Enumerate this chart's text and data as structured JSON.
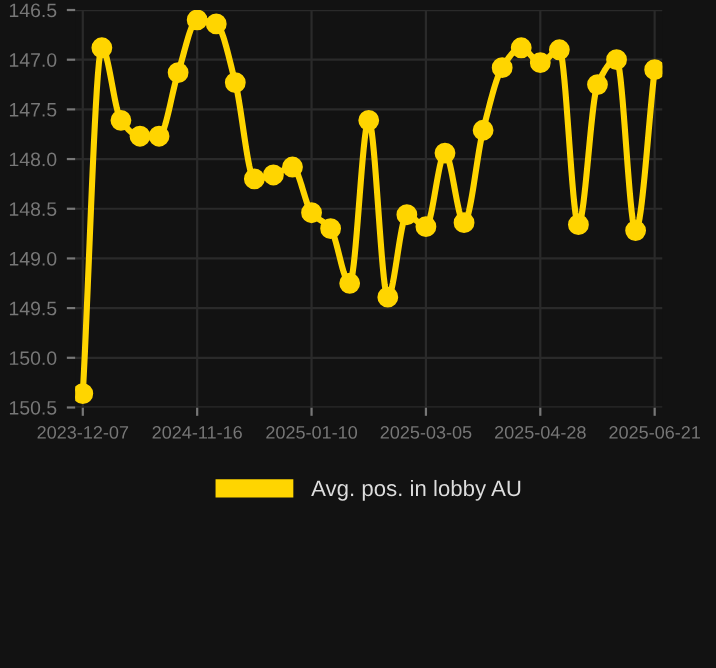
{
  "chart_data": {
    "type": "line",
    "categories": [
      "2023-12-07",
      null,
      null,
      null,
      null,
      null,
      "2024-11-16",
      null,
      null,
      null,
      null,
      null,
      "2025-01-10",
      null,
      null,
      null,
      null,
      null,
      "2025-03-05",
      null,
      null,
      null,
      null,
      null,
      "2025-04-28",
      null,
      null,
      null,
      null,
      null,
      "2025-06-21"
    ],
    "series": [
      {
        "name": "Avg. pos. in lobby AU",
        "color": "#ffd500",
        "values": [
          150.36,
          146.88,
          147.61,
          147.77,
          147.77,
          147.13,
          146.6,
          146.64,
          147.23,
          148.2,
          148.16,
          148.08,
          148.54,
          148.7,
          149.25,
          147.61,
          149.39,
          148.56,
          148.68,
          147.94,
          148.64,
          147.71,
          147.08,
          146.88,
          147.03,
          146.9,
          148.66,
          147.25,
          147.0,
          148.72,
          147.1
        ]
      }
    ],
    "ylim": [
      150.5,
      146.5
    ],
    "yticks": [
      {
        "value": 146.5,
        "label": "146.5"
      },
      {
        "value": 147,
        "label": "147.0"
      },
      {
        "value": 147.5,
        "label": "147.5"
      },
      {
        "value": 148,
        "label": "148.0"
      },
      {
        "value": 148.5,
        "label": "148.5"
      },
      {
        "value": 149,
        "label": "149.0"
      },
      {
        "value": 149.5,
        "label": "149.5"
      },
      {
        "value": 150,
        "label": "150.0"
      },
      {
        "value": 150.5,
        "label": "150.5"
      }
    ],
    "grid": true,
    "legend": "bottom",
    "marker": "circle",
    "line_style": "solid"
  }
}
